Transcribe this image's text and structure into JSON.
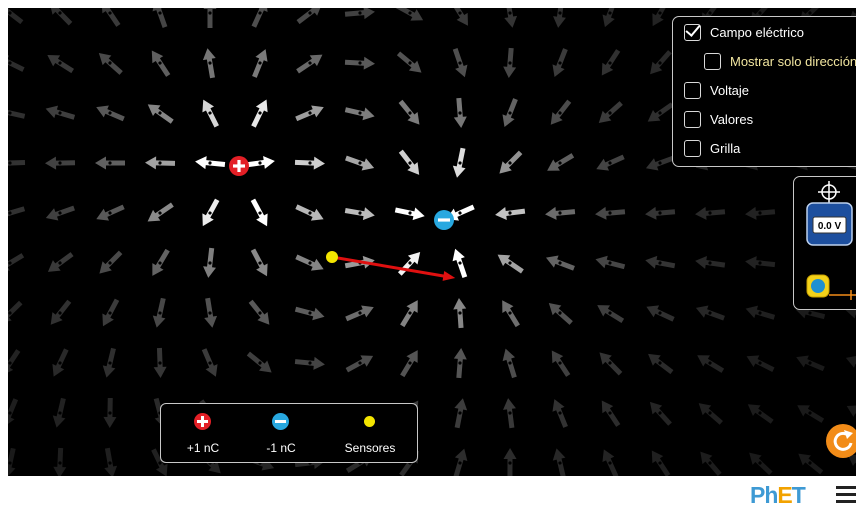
{
  "controls": {
    "electric_field": {
      "label": "Campo eléctrico",
      "checked": true
    },
    "direction_only": {
      "label": "Mostrar solo dirección",
      "checked": false
    },
    "voltage": {
      "label": "Voltaje",
      "checked": false
    },
    "values": {
      "label": "Valores",
      "checked": false
    },
    "grid": {
      "label": "Grilla",
      "checked": false
    }
  },
  "tools": {
    "voltmeter_reading": "0.0 V"
  },
  "toolbox": {
    "positive_label": "+1 nC",
    "negative_label": "-1 nC",
    "sensor_label": "Sensores"
  },
  "brand": {
    "logo_ph": "Ph",
    "logo_e": "E",
    "logo_t": "T"
  },
  "colors": {
    "positive_charge": "#e31f26",
    "negative_charge": "#28a8e0",
    "sensor": "#f4e500",
    "sensor_vector": "#e01010",
    "reset": "#f28c18",
    "background": "#000000"
  }
}
